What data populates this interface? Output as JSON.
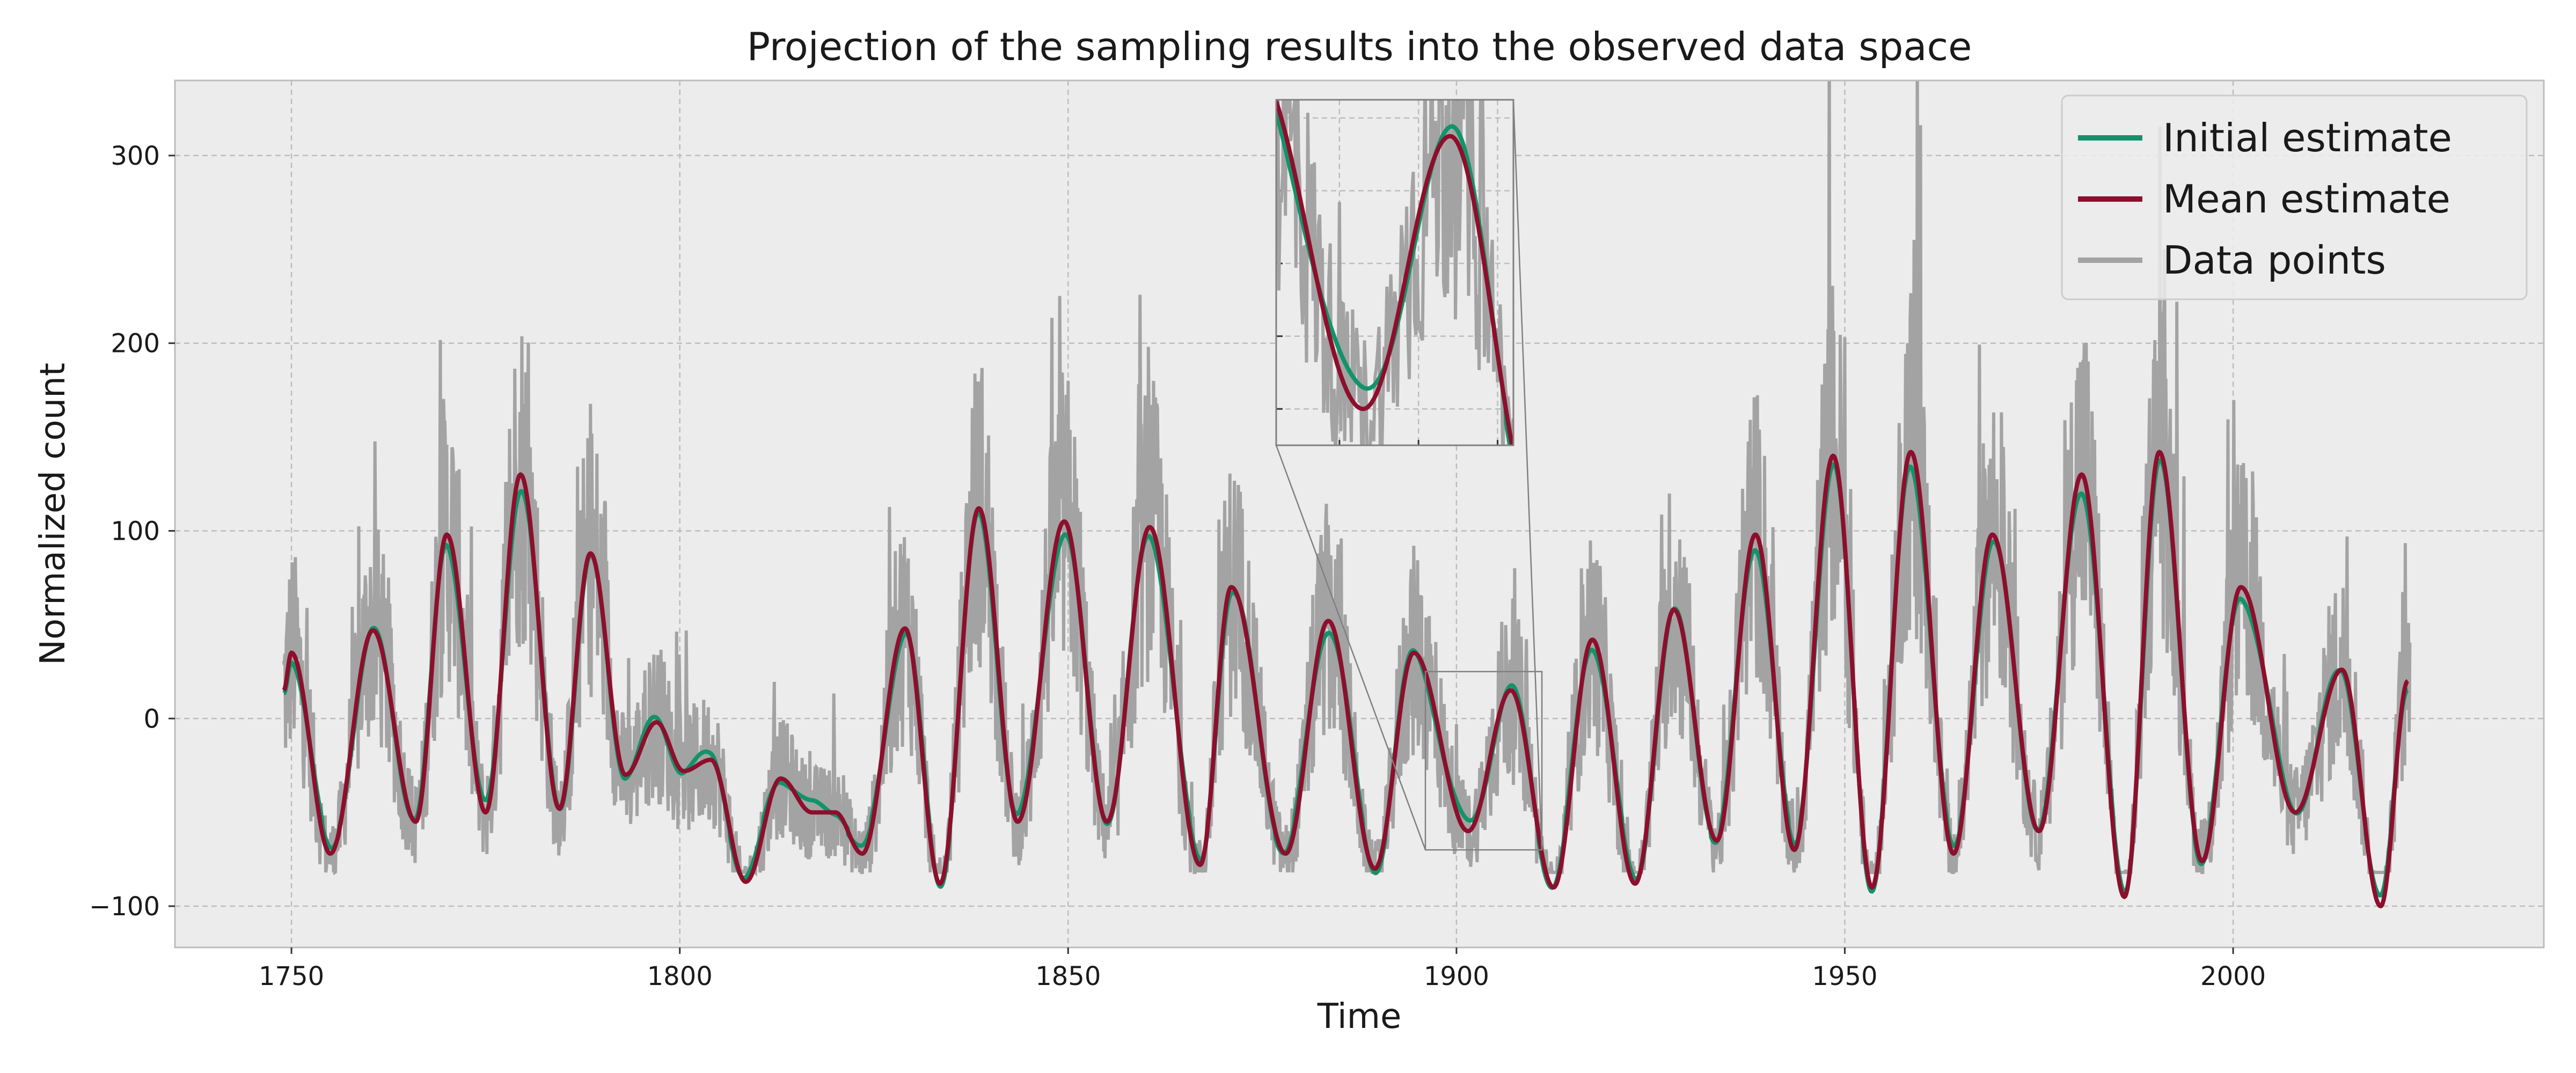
{
  "chart_data": {
    "type": "line",
    "title": "Projection of the sampling results into the observed data space",
    "xlabel": "Time",
    "ylabel": "Normalized count",
    "xlim": [
      1735,
      2040
    ],
    "ylim": [
      -122,
      340
    ],
    "x_ticks": [
      1750,
      1800,
      1850,
      1900,
      1950,
      2000
    ],
    "y_ticks": [
      -100,
      0,
      100,
      200,
      300
    ],
    "x_tick_labels": [
      "1750",
      "1800",
      "1850",
      "1900",
      "1950",
      "2000"
    ],
    "y_tick_labels": [
      "−100",
      "0",
      "100",
      "200",
      "300"
    ],
    "grid": true,
    "legend_position": "top-right",
    "colors": {
      "data": "#a3a3a3",
      "initial": "#12936a",
      "mean": "#8e0e2c",
      "axes_bg": "#ececec",
      "grid": "#bdbdbd"
    },
    "series": [
      {
        "name": "Initial estimate",
        "role": "initial"
      },
      {
        "name": "Mean estimate",
        "role": "mean"
      },
      {
        "name": "Data points",
        "role": "data"
      }
    ],
    "cycle_extrema": [
      [
        1749,
        15
      ],
      [
        1750,
        35
      ],
      [
        1755,
        -72
      ],
      [
        1760.5,
        47
      ],
      [
        1766,
        -55
      ],
      [
        1770,
        98
      ],
      [
        1775,
        -50
      ],
      [
        1779.5,
        130
      ],
      [
        1784.5,
        -48
      ],
      [
        1788.5,
        88
      ],
      [
        1793,
        -30
      ],
      [
        1797,
        -2
      ],
      [
        1800.5,
        -28
      ],
      [
        1804,
        -22
      ],
      [
        1808.5,
        -87
      ],
      [
        1813,
        -32
      ],
      [
        1817,
        -50
      ],
      [
        1820,
        -50
      ],
      [
        1823.5,
        -72
      ],
      [
        1829,
        48
      ],
      [
        1833.5,
        -88
      ],
      [
        1838.5,
        112
      ],
      [
        1843.5,
        -55
      ],
      [
        1849.5,
        105
      ],
      [
        1855,
        -55
      ],
      [
        1860.5,
        102
      ],
      [
        1867,
        -78
      ],
      [
        1871,
        70
      ],
      [
        1878,
        -72
      ],
      [
        1883.5,
        52
      ],
      [
        1889.5,
        -80
      ],
      [
        1894.5,
        35
      ],
      [
        1901.5,
        -60
      ],
      [
        1907,
        15
      ],
      [
        1912.5,
        -90
      ],
      [
        1917.5,
        42
      ],
      [
        1923,
        -88
      ],
      [
        1928,
        58
      ],
      [
        1933.5,
        -65
      ],
      [
        1938.5,
        98
      ],
      [
        1943.5,
        -70
      ],
      [
        1948.5,
        140
      ],
      [
        1953.5,
        -90
      ],
      [
        1958.5,
        142
      ],
      [
        1964,
        -72
      ],
      [
        1969,
        98
      ],
      [
        1975,
        -60
      ],
      [
        1980.5,
        130
      ],
      [
        1986,
        -95
      ],
      [
        1990.5,
        142
      ],
      [
        1996,
        -76
      ],
      [
        2001,
        70
      ],
      [
        2008,
        -50
      ],
      [
        2014,
        26
      ],
      [
        2019,
        -100
      ],
      [
        2022.5,
        20
      ]
    ],
    "inset": {
      "xlim": [
        1896,
        1911
      ],
      "ylim": [
        -70,
        25
      ]
    }
  }
}
